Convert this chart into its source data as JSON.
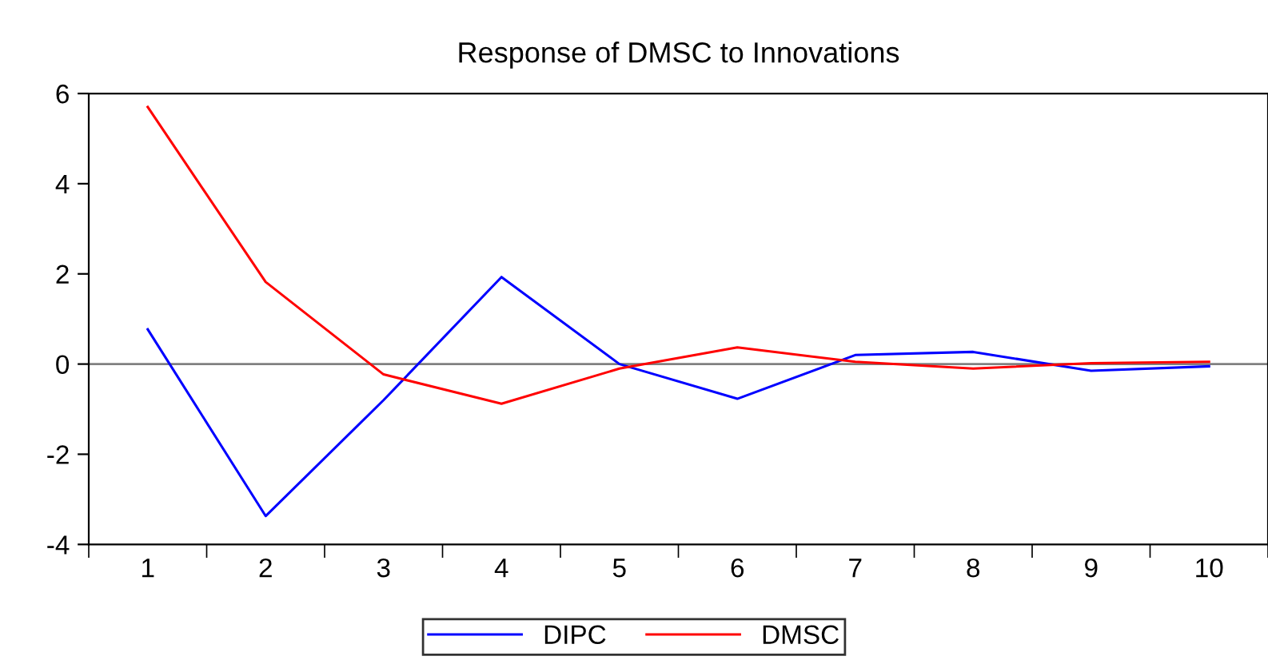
{
  "chart_data": {
    "type": "line",
    "title": "Response of DMSC to Innovations",
    "categories": [
      "1",
      "2",
      "3",
      "4",
      "5",
      "6",
      "7",
      "8",
      "9",
      "10"
    ],
    "series": [
      {
        "name": "DIPC",
        "color": "#0000ff",
        "values": [
          0.77,
          -3.37,
          -0.8,
          1.93,
          0.0,
          -0.77,
          0.2,
          0.27,
          -0.15,
          -0.05
        ]
      },
      {
        "name": "DMSC",
        "color": "#ff0000",
        "values": [
          5.7,
          1.82,
          -0.23,
          -0.88,
          -0.1,
          0.37,
          0.05,
          -0.1,
          0.02,
          0.05
        ]
      }
    ],
    "ylim": [
      -4,
      6
    ],
    "yticks": [
      -4,
      -2,
      0,
      2,
      4,
      6
    ],
    "ref_lines": [
      {
        "axis": "y",
        "value": 0,
        "color": "#808080"
      }
    ],
    "grid": false,
    "legend": "bottom",
    "marker": "none",
    "line_style": "solid"
  }
}
